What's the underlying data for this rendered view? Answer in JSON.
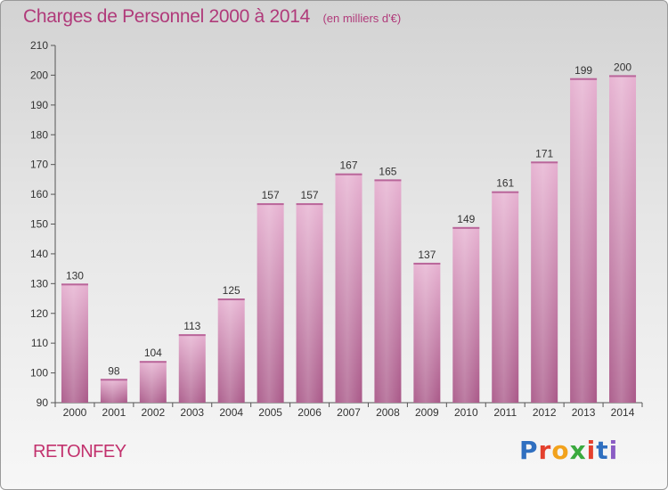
{
  "title": "Charges de Personnel 2000 à 2014",
  "subtitle": "(en milliers d'€)",
  "commune": "RETONFEY",
  "logo": {
    "letters": [
      "P",
      "r",
      "o",
      "x",
      "i",
      "t",
      "i"
    ],
    "colors": [
      "#2f6fc0",
      "#e4402d",
      "#f2a21c",
      "#3aa93e",
      "#e4402d",
      "#2f6fc0",
      "#8a5cc4"
    ]
  },
  "colors": {
    "title": "#b03a7a",
    "commune": "#c2316d",
    "bar": "#c06a9c",
    "bar_light": "#e2a8cc",
    "bar_dark": "#a85587"
  },
  "chart_data": {
    "type": "bar",
    "categories": [
      "2000",
      "2001",
      "2002",
      "2003",
      "2004",
      "2005",
      "2006",
      "2007",
      "2008",
      "2009",
      "2010",
      "2011",
      "2012",
      "2013",
      "2014"
    ],
    "values": [
      130,
      98,
      104,
      113,
      125,
      157,
      157,
      167,
      165,
      137,
      149,
      161,
      171,
      199,
      200
    ],
    "ylim": [
      90,
      210
    ],
    "yticks": [
      90,
      100,
      110,
      120,
      130,
      140,
      150,
      160,
      170,
      180,
      190,
      200,
      210
    ],
    "grid": false
  }
}
